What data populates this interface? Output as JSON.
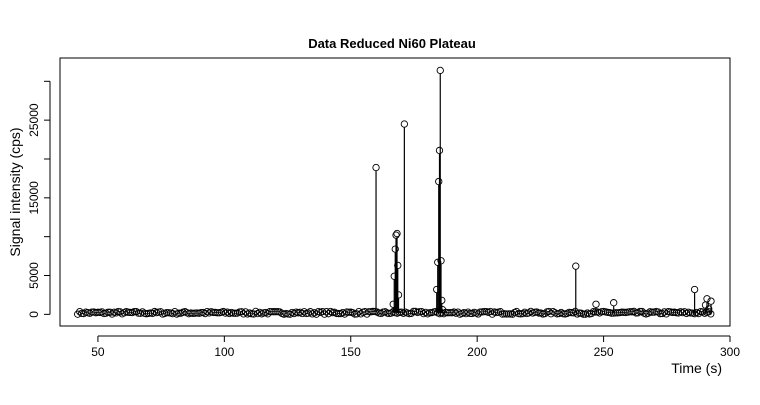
{
  "chart_data": {
    "type": "scatter",
    "title": "Data Reduced Ni60 Plateau",
    "xlabel": "Time (s)",
    "ylabel": "Signal intensity (cps)",
    "xlim": [
      35,
      300
    ],
    "ylim": [
      -1500,
      33000
    ],
    "x_ticks": [
      50,
      100,
      150,
      200,
      250,
      300
    ],
    "y_ticks": [
      0,
      5000,
      15000,
      25000
    ],
    "y_ticks_unlabeled": [
      10000,
      20000,
      30000
    ],
    "grid": false,
    "legend": "none",
    "marker": "open-circle",
    "lines": "vertical-to-baseline",
    "baseline": {
      "x_start": 42,
      "x_end": 293,
      "step": 0.8,
      "level": 200,
      "amplitude": 180
    },
    "spikes": [
      {
        "x": 160.0,
        "y": 18900
      },
      {
        "x": 166.8,
        "y": 1300
      },
      {
        "x": 167.2,
        "y": 4900
      },
      {
        "x": 167.6,
        "y": 8400
      },
      {
        "x": 167.9,
        "y": 10200
      },
      {
        "x": 168.3,
        "y": 10400
      },
      {
        "x": 168.6,
        "y": 6300
      },
      {
        "x": 168.9,
        "y": 2500
      },
      {
        "x": 171.2,
        "y": 24500
      },
      {
        "x": 184.0,
        "y": 3200
      },
      {
        "x": 184.4,
        "y": 6700
      },
      {
        "x": 184.8,
        "y": 17100
      },
      {
        "x": 185.1,
        "y": 21100
      },
      {
        "x": 185.4,
        "y": 31400
      },
      {
        "x": 185.7,
        "y": 6900
      },
      {
        "x": 186.0,
        "y": 1800
      },
      {
        "x": 186.3,
        "y": 600
      },
      {
        "x": 239.0,
        "y": 6200
      },
      {
        "x": 247.0,
        "y": 1300
      },
      {
        "x": 254.0,
        "y": 1500
      },
      {
        "x": 286.0,
        "y": 3200
      },
      {
        "x": 290.3,
        "y": 1200
      },
      {
        "x": 290.9,
        "y": 2000
      },
      {
        "x": 291.6,
        "y": 700
      },
      {
        "x": 292.5,
        "y": 1700
      }
    ]
  }
}
